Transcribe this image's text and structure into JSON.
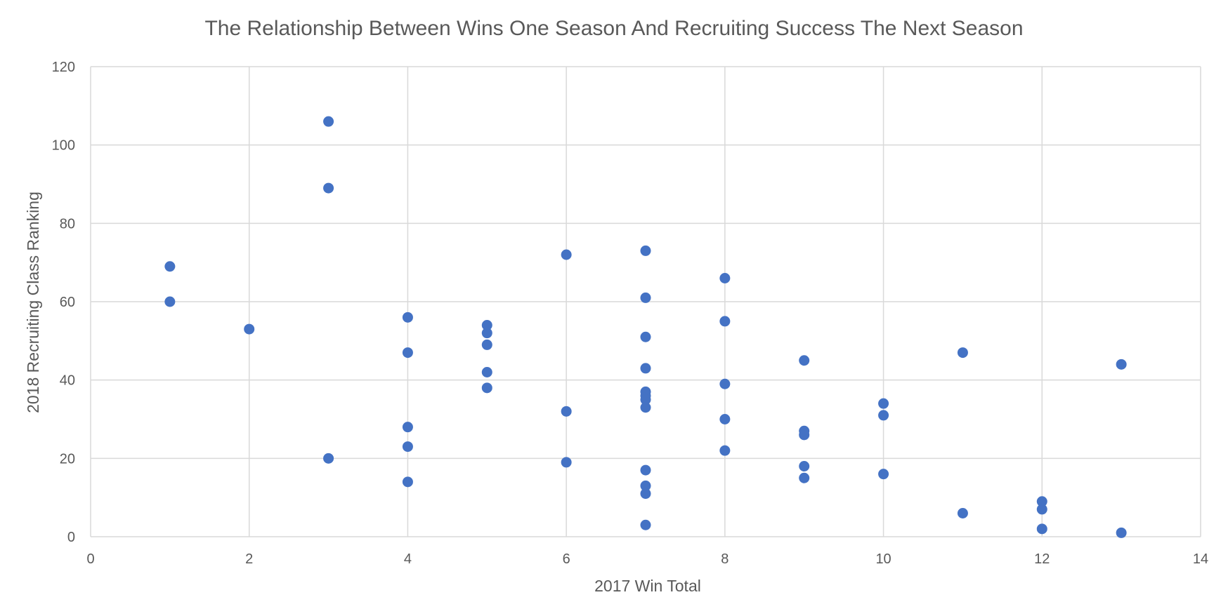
{
  "chart_data": {
    "type": "scatter",
    "title": "The Relationship Between Wins One Season And Recruiting Success The Next Season",
    "xlabel": "2017 Win Total",
    "ylabel": "2018 Recruiting Class Ranking",
    "xlim": [
      0,
      14
    ],
    "ylim": [
      0,
      120
    ],
    "xticks": [
      0,
      2,
      4,
      6,
      8,
      10,
      12,
      14
    ],
    "yticks": [
      0,
      20,
      40,
      60,
      80,
      100,
      120
    ],
    "grid": true,
    "legend": "none",
    "series": [
      {
        "color": "#4472c4",
        "points": [
          [
            1,
            69
          ],
          [
            1,
            60
          ],
          [
            2,
            53
          ],
          [
            3,
            106
          ],
          [
            3,
            89
          ],
          [
            3,
            20
          ],
          [
            4,
            56
          ],
          [
            4,
            47
          ],
          [
            4,
            28
          ],
          [
            4,
            23
          ],
          [
            4,
            14
          ],
          [
            5,
            54
          ],
          [
            5,
            52
          ],
          [
            5,
            49
          ],
          [
            5,
            42
          ],
          [
            5,
            38
          ],
          [
            6,
            72
          ],
          [
            6,
            32
          ],
          [
            6,
            19
          ],
          [
            7,
            73
          ],
          [
            7,
            61
          ],
          [
            7,
            51
          ],
          [
            7,
            43
          ],
          [
            7,
            37
          ],
          [
            7,
            36
          ],
          [
            7,
            35
          ],
          [
            7,
            33
          ],
          [
            7,
            17
          ],
          [
            7,
            13
          ],
          [
            7,
            11
          ],
          [
            7,
            3
          ],
          [
            8,
            66
          ],
          [
            8,
            55
          ],
          [
            8,
            39
          ],
          [
            8,
            30
          ],
          [
            8,
            22
          ],
          [
            9,
            45
          ],
          [
            9,
            27
          ],
          [
            9,
            26
          ],
          [
            9,
            18
          ],
          [
            9,
            15
          ],
          [
            10,
            34
          ],
          [
            10,
            31
          ],
          [
            10,
            16
          ],
          [
            11,
            47
          ],
          [
            11,
            6
          ],
          [
            12,
            9
          ],
          [
            12,
            7
          ],
          [
            12,
            2
          ],
          [
            13,
            44
          ],
          [
            13,
            1
          ]
        ]
      }
    ]
  }
}
